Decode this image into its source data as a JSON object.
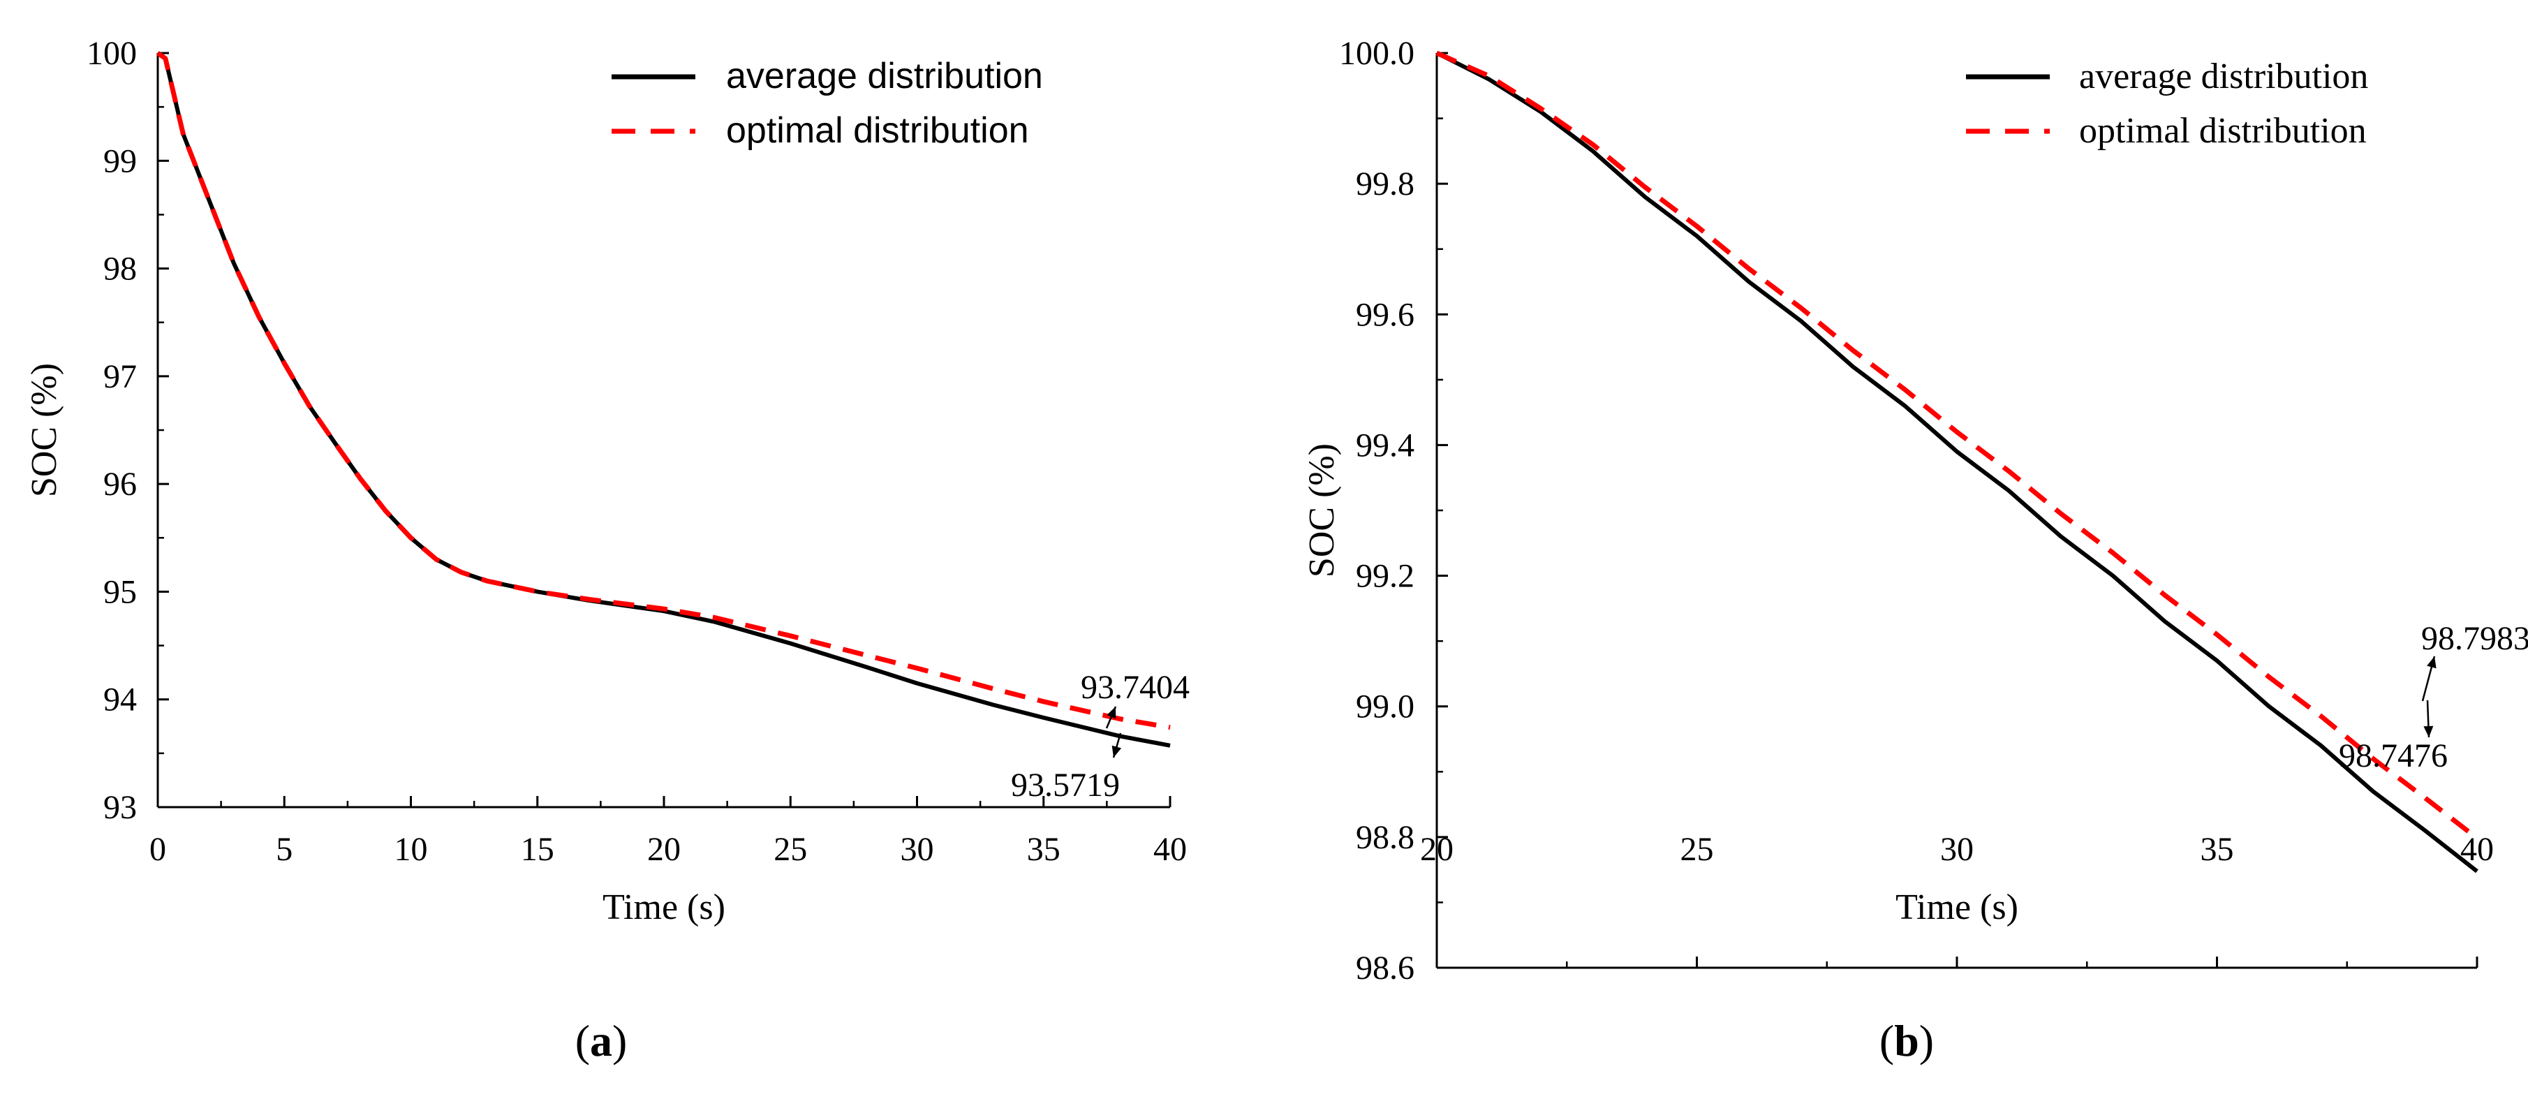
{
  "chart_data": [
    {
      "panel_label": "a",
      "type": "line",
      "xlabel": "Time (s)",
      "ylabel": "SOC (%)",
      "xlim": [
        0,
        40
      ],
      "ylim": [
        93,
        100
      ],
      "xticks": [
        0,
        5,
        10,
        15,
        20,
        25,
        30,
        35,
        40
      ],
      "xtick_labels": [
        "0",
        "5",
        "10",
        "15",
        "20",
        "25",
        "30",
        "35",
        "40"
      ],
      "yticks": [
        93,
        94,
        95,
        96,
        97,
        98,
        99,
        100
      ],
      "ytick_labels": [
        "93",
        "94",
        "95",
        "96",
        "97",
        "98",
        "99",
        "100"
      ],
      "legend_position": "top-right",
      "series": [
        {
          "name": "average distribution",
          "color": "#000000",
          "style": "solid",
          "x": [
            0,
            0.3,
            1,
            2,
            3,
            4,
            5,
            6,
            7,
            8,
            9,
            10,
            11,
            12,
            13,
            14,
            15,
            17,
            20,
            22,
            25,
            28,
            30,
            33,
            35,
            38,
            40
          ],
          "y": [
            100,
            99.95,
            99.25,
            98.65,
            98.05,
            97.55,
            97.12,
            96.72,
            96.38,
            96.05,
            95.75,
            95.5,
            95.3,
            95.18,
            95.1,
            95.05,
            95.0,
            94.92,
            94.82,
            94.72,
            94.52,
            94.3,
            94.15,
            93.95,
            93.83,
            93.66,
            93.5719
          ]
        },
        {
          "name": "optimal distribution",
          "color": "#ff0000",
          "style": "dashed",
          "x": [
            0,
            0.3,
            1,
            2,
            3,
            4,
            5,
            6,
            7,
            8,
            9,
            10,
            11,
            12,
            13,
            14,
            15,
            17,
            20,
            22,
            25,
            28,
            30,
            33,
            35,
            38,
            40
          ],
          "y": [
            100,
            99.95,
            99.25,
            98.65,
            98.05,
            97.55,
            97.12,
            96.72,
            96.38,
            96.05,
            95.75,
            95.5,
            95.3,
            95.18,
            95.1,
            95.05,
            95.0,
            94.93,
            94.84,
            94.76,
            94.59,
            94.41,
            94.29,
            94.1,
            93.98,
            93.82,
            93.7404
          ]
        }
      ],
      "annotations": [
        {
          "text": "93.7404",
          "series": "optimal distribution",
          "x": 38.2,
          "y": 93.79,
          "direction": "up"
        },
        {
          "text": "93.5719",
          "series": "average distribution",
          "x": 38.0,
          "y": 93.63,
          "direction": "down"
        }
      ]
    },
    {
      "panel_label": "b",
      "type": "line",
      "xlabel": "Time (s)",
      "ylabel": "SOC (%)",
      "xlim": [
        20,
        40
      ],
      "ylim": [
        98.6,
        100.0
      ],
      "xticks": [
        20,
        25,
        30,
        35,
        40
      ],
      "xtick_labels": [
        "20",
        "25",
        "30",
        "35",
        "40"
      ],
      "yticks": [
        98.6,
        98.8,
        99.0,
        99.2,
        99.4,
        99.6,
        99.8,
        100.0
      ],
      "ytick_labels": [
        "98.6",
        "98.8",
        "99.0",
        "99.2",
        "99.4",
        "99.6",
        "99.8",
        "100.0"
      ],
      "legend_position": "top-right",
      "series": [
        {
          "name": "average distribution",
          "color": "#000000",
          "style": "solid",
          "x": [
            20,
            21,
            22,
            23,
            24,
            25,
            26,
            27,
            28,
            29,
            30,
            31,
            32,
            33,
            34,
            35,
            36,
            37,
            38,
            39,
            40
          ],
          "y": [
            100.0,
            99.96,
            99.91,
            99.85,
            99.78,
            99.72,
            99.65,
            99.59,
            99.52,
            99.46,
            99.39,
            99.33,
            99.26,
            99.2,
            99.13,
            99.07,
            99.0,
            98.94,
            98.87,
            98.81,
            98.7476
          ]
        },
        {
          "name": "optimal distribution",
          "color": "#ff0000",
          "style": "dashed",
          "x": [
            20,
            21,
            22,
            23,
            24,
            25,
            26,
            27,
            28,
            29,
            30,
            31,
            32,
            33,
            34,
            35,
            36,
            37,
            38,
            39,
            40
          ],
          "y": [
            100.0,
            99.965,
            99.915,
            99.86,
            99.795,
            99.735,
            99.67,
            99.61,
            99.545,
            99.485,
            99.42,
            99.36,
            99.295,
            99.235,
            99.17,
            99.11,
            99.045,
            98.985,
            98.92,
            98.86,
            98.7983
          ]
        }
      ],
      "annotations": [
        {
          "text": "98.7983",
          "series": "optimal distribution",
          "x": 38.8,
          "y": 98.87,
          "direction": "up"
        },
        {
          "text": "98.7476",
          "series": "average distribution",
          "x": 38.8,
          "y": 98.82,
          "direction": "down"
        }
      ]
    }
  ]
}
